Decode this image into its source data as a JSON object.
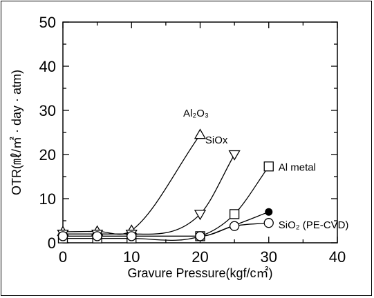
{
  "chart_data": {
    "type": "line",
    "title": "",
    "xlabel": "Gravure Pressure(kgf/c㎡)",
    "ylabel": "OTR(㎖/㎡ · day · atm)",
    "xlim": [
      0,
      40
    ],
    "ylim": [
      0,
      50
    ],
    "xticks": [
      "0",
      "10",
      "20",
      "30",
      "40"
    ],
    "yticks": [
      "0",
      "10",
      "20",
      "30",
      "40",
      "50"
    ],
    "grid": false,
    "series": [
      {
        "name": "Al₂O₃",
        "marker": "triangle-up",
        "x": [
          0,
          5,
          10,
          20
        ],
        "y": [
          2.5,
          2.6,
          2.8,
          24.5
        ]
      },
      {
        "name": "SiOx",
        "marker": "triangle-down",
        "x": [
          0,
          5,
          10,
          20,
          25
        ],
        "y": [
          2.0,
          2.0,
          2.0,
          6.5,
          20.0
        ]
      },
      {
        "name": "Al metal",
        "marker": "square",
        "x": [
          0,
          5,
          10,
          20,
          25,
          30
        ],
        "y": [
          1.0,
          1.0,
          1.0,
          1.5,
          6.5,
          17.3
        ]
      },
      {
        "name": "",
        "marker": "filled-circle",
        "x": [
          0,
          5,
          10,
          20,
          25,
          30
        ],
        "y": [
          1.5,
          1.5,
          1.5,
          1.5,
          4.0,
          7.0
        ]
      },
      {
        "name": "SiO₂ (PE-CVD)",
        "marker": "circle",
        "x": [
          0,
          5,
          10,
          20,
          25,
          30
        ],
        "y": [
          1.5,
          1.5,
          1.5,
          1.5,
          3.8,
          4.5
        ]
      }
    ],
    "annotations": [
      {
        "text": "Al₂O₃",
        "series": 0
      },
      {
        "text": "SiOx",
        "series": 1
      },
      {
        "text": "Al metal",
        "series": 2
      },
      {
        "text": "SiO₂ (PE-CVD)",
        "series": 4
      }
    ]
  }
}
